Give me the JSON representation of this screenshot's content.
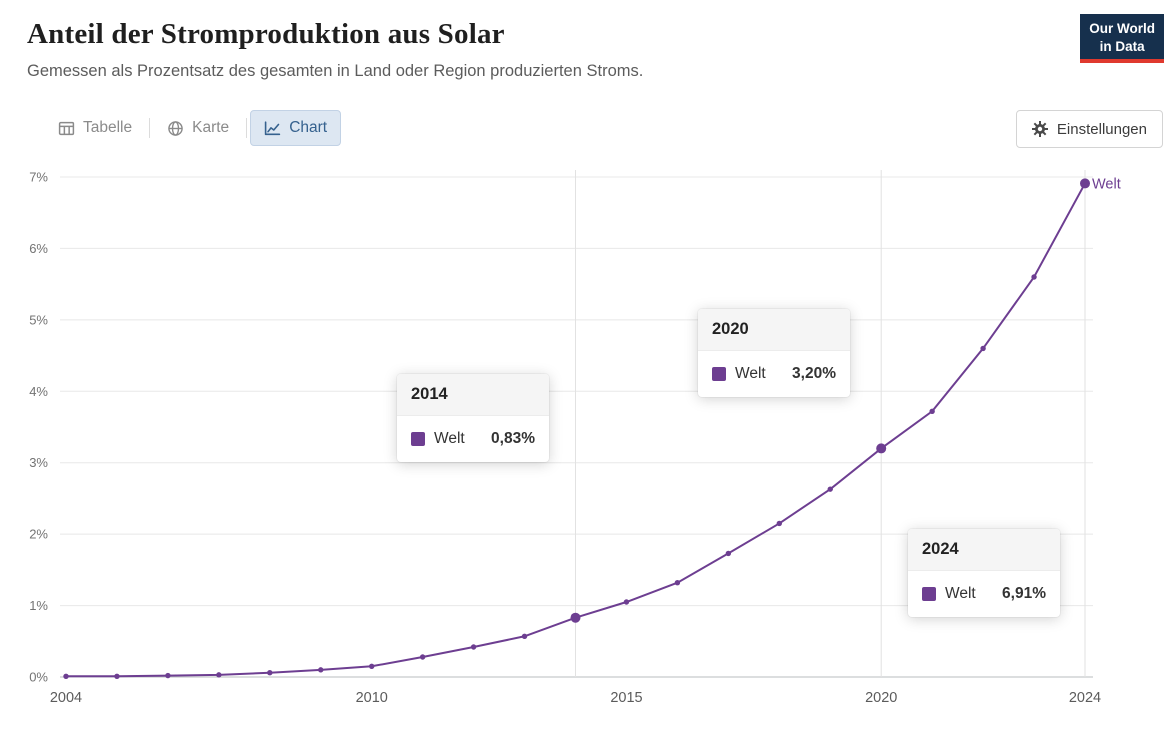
{
  "header": {
    "title": "Anteil der Stromproduktion aus Solar",
    "subtitle": "Gemessen als Prozentsatz des gesamten in Land oder Region produzierten Stroms.",
    "logo": {
      "line1": "Our World",
      "line2": "in Data"
    }
  },
  "tabs": [
    {
      "label": "Tabelle"
    },
    {
      "label": "Karte"
    },
    {
      "label": "Chart"
    }
  ],
  "settings": {
    "label": "Einstellungen"
  },
  "colors": {
    "line": "#6D3E91",
    "active_tab_bg": "#dde7f2",
    "active_tab_text": "#35618e",
    "logo_bg": "#16304d",
    "logo_underline": "#e0392e"
  },
  "chart_data": {
    "type": "line",
    "title": "Anteil der Stromproduktion aus Solar",
    "xlabel": "",
    "ylabel": "",
    "x": [
      2004,
      2005,
      2006,
      2007,
      2008,
      2009,
      2010,
      2011,
      2012,
      2013,
      2014,
      2015,
      2016,
      2017,
      2018,
      2019,
      2020,
      2021,
      2022,
      2023,
      2024
    ],
    "series": [
      {
        "name": "Welt",
        "color": "#6D3E91",
        "values": [
          0.01,
          0.01,
          0.02,
          0.03,
          0.06,
          0.1,
          0.15,
          0.28,
          0.42,
          0.57,
          0.83,
          1.05,
          1.32,
          1.73,
          2.15,
          2.63,
          3.2,
          3.72,
          4.6,
          5.6,
          6.91
        ]
      }
    ],
    "ylim": [
      0,
      7
    ],
    "grid": true,
    "y_ticks": [
      "0%",
      "1%",
      "2%",
      "3%",
      "4%",
      "5%",
      "6%",
      "7%"
    ],
    "x_ticks": [
      2004,
      2010,
      2015,
      2020,
      2024
    ],
    "highlight_years": [
      2014,
      2020,
      2024
    ],
    "end_label": "Welt",
    "annotations": [
      {
        "year": "2014",
        "series": "Welt",
        "value": "0,83%",
        "left": 397,
        "top": 374
      },
      {
        "year": "2020",
        "series": "Welt",
        "value": "3,20%",
        "left": 698,
        "top": 309
      },
      {
        "year": "2024",
        "series": "Welt",
        "value": "6,91%",
        "left": 908,
        "top": 529
      }
    ]
  }
}
